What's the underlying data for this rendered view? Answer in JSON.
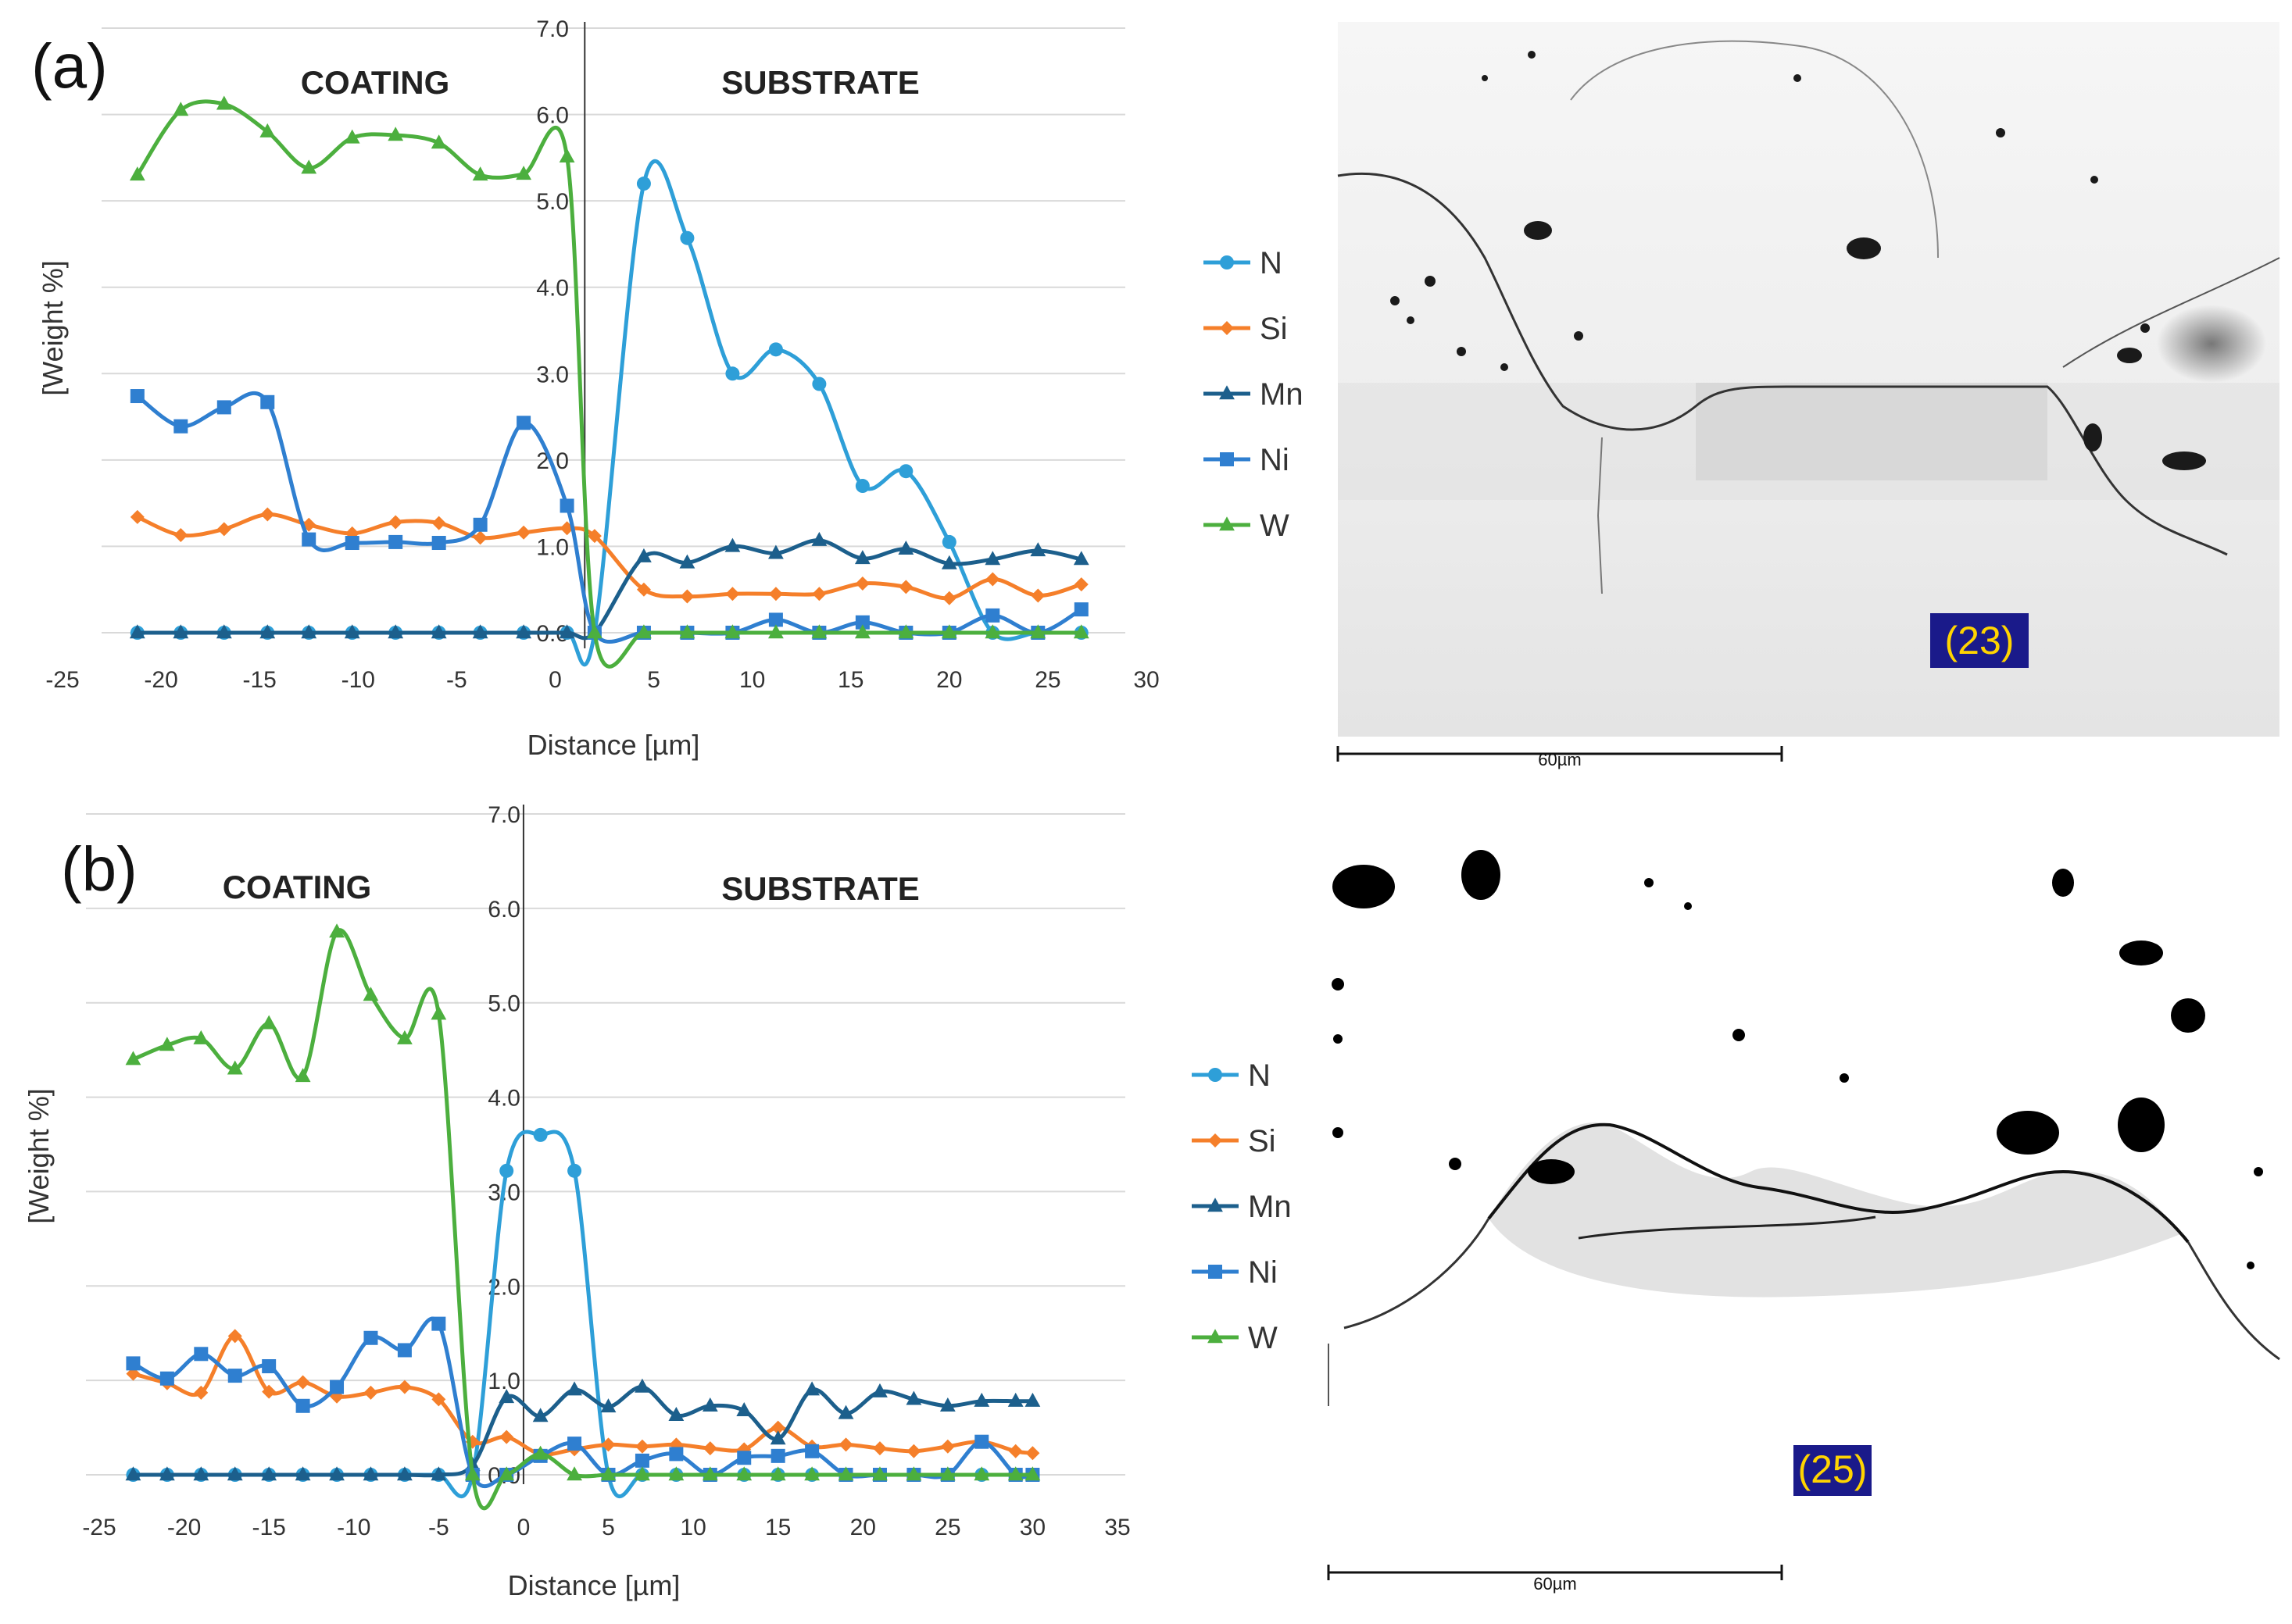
{
  "chart_data": [
    {
      "type": "line",
      "panel_label": "(a)",
      "region_left": "COATING",
      "region_right": "SUBSTRATE",
      "xlabel": "Distance [µm]",
      "ylabel": "[Weight %]",
      "xlim": [
        -25,
        30
      ],
      "ylim": [
        0,
        7
      ],
      "xticks": [
        "-25",
        "-20",
        "-15",
        "-10",
        "-5",
        "0",
        "5",
        "10",
        "15",
        "20",
        "25",
        "30"
      ],
      "yticks": [
        "0.0",
        "1.0",
        "2.0",
        "3.0",
        "4.0",
        "5.0",
        "6.0",
        "7.0"
      ],
      "interface_x": 1.5,
      "series": [
        {
          "name": "N",
          "color": "#2e9fd8",
          "marker": "circle",
          "x": [
            -21.2,
            -19.0,
            -16.8,
            -14.6,
            -12.5,
            -10.3,
            -8.1,
            -5.9,
            -3.8,
            -1.6,
            0.6,
            2.0,
            4.5,
            6.7,
            9.0,
            11.2,
            13.4,
            15.6,
            17.8,
            20.0,
            22.2,
            24.5,
            26.7
          ],
          "y": [
            0,
            0,
            0,
            0,
            0,
            0,
            0,
            0,
            0,
            0,
            0,
            0,
            5.2,
            4.57,
            3.0,
            3.28,
            2.88,
            1.7,
            1.87,
            1.05,
            0,
            0,
            0
          ]
        },
        {
          "name": "Si",
          "color": "#f57f2a",
          "marker": "diamond",
          "x": [
            -21.2,
            -19.0,
            -16.8,
            -14.6,
            -12.5,
            -10.3,
            -8.1,
            -5.9,
            -3.8,
            -1.6,
            0.6,
            2.0,
            4.5,
            6.7,
            9.0,
            11.2,
            13.4,
            15.6,
            17.8,
            20.0,
            22.2,
            24.5,
            26.7
          ],
          "y": [
            1.34,
            1.13,
            1.2,
            1.37,
            1.25,
            1.15,
            1.28,
            1.27,
            1.1,
            1.16,
            1.21,
            1.12,
            0.5,
            0.42,
            0.45,
            0.45,
            0.45,
            0.57,
            0.53,
            0.4,
            0.62,
            0.43,
            0.56
          ]
        },
        {
          "name": "Mn",
          "color": "#1c5f8c",
          "marker": "triangle",
          "x": [
            -21.2,
            -19.0,
            -16.8,
            -14.6,
            -12.5,
            -10.3,
            -8.1,
            -5.9,
            -3.8,
            -1.6,
            0.6,
            2.0,
            4.5,
            6.7,
            9.0,
            11.2,
            13.4,
            15.6,
            17.8,
            20.0,
            22.2,
            24.5,
            26.7
          ],
          "y": [
            0,
            0,
            0,
            0,
            0,
            0,
            0,
            0,
            0,
            0,
            0,
            0,
            0.88,
            0.81,
            1.0,
            0.92,
            1.07,
            0.86,
            0.97,
            0.8,
            0.85,
            0.95,
            0.85
          ]
        },
        {
          "name": "Ni",
          "color": "#2f7fd0",
          "marker": "square",
          "x": [
            -21.2,
            -19.0,
            -16.8,
            -14.6,
            -12.5,
            -10.3,
            -8.1,
            -5.9,
            -3.8,
            -1.6,
            0.6,
            2.0,
            4.5,
            6.7,
            9.0,
            11.2,
            13.4,
            15.6,
            17.8,
            20.0,
            22.2,
            24.5,
            26.7
          ],
          "y": [
            2.74,
            2.39,
            2.61,
            2.67,
            1.08,
            1.04,
            1.05,
            1.04,
            1.25,
            2.43,
            1.47,
            0,
            0,
            0,
            0,
            0.15,
            0,
            0.12,
            0,
            0,
            0.2,
            0,
            0.27
          ]
        },
        {
          "name": "W",
          "color": "#4caf3e",
          "marker": "triangle",
          "x": [
            -21.2,
            -19.0,
            -16.8,
            -14.6,
            -12.5,
            -10.3,
            -8.1,
            -5.9,
            -3.8,
            -1.6,
            0.6,
            2.0,
            4.5,
            6.7,
            9.0,
            11.2,
            13.4,
            15.6,
            17.8,
            20.0,
            22.2,
            24.5,
            26.7
          ],
          "y": [
            5.3,
            6.05,
            6.12,
            5.8,
            5.38,
            5.73,
            5.76,
            5.67,
            5.3,
            5.31,
            5.51,
            0,
            0,
            0,
            0,
            0,
            0,
            0,
            0,
            0,
            0,
            0,
            0
          ]
        }
      ]
    },
    {
      "type": "line",
      "panel_label": "(b)",
      "region_left": "COATING",
      "region_right": "SUBSTRATE",
      "xlabel": "Distance [µm]",
      "ylabel": "[Weight  %]",
      "xlim": [
        -25,
        35
      ],
      "ylim": [
        0,
        7
      ],
      "xticks": [
        "-25",
        "-20",
        "-15",
        "-10",
        "-5",
        "0",
        "5",
        "10",
        "15",
        "20",
        "25",
        "30",
        "35"
      ],
      "yticks": [
        "0.0",
        "1.0",
        "2.0",
        "3.0",
        "4.0",
        "5.0",
        "6.0",
        "7.0"
      ],
      "interface_x": 0,
      "series": [
        {
          "name": "N",
          "color": "#2e9fd8",
          "marker": "circle",
          "x": [
            -23,
            -21,
            -19,
            -17,
            -15,
            -13,
            -11,
            -9,
            -7,
            -5,
            -3,
            -1,
            1,
            3,
            5,
            7,
            9,
            11,
            13,
            15,
            17,
            19,
            21,
            23,
            25,
            27,
            29,
            30
          ],
          "y": [
            0,
            0,
            0,
            0,
            0,
            0,
            0,
            0,
            0,
            0,
            0,
            3.22,
            3.6,
            3.22,
            0,
            0,
            0,
            0,
            0,
            0,
            0,
            0,
            0,
            0,
            0,
            0,
            0,
            0
          ]
        },
        {
          "name": "Si",
          "color": "#f57f2a",
          "marker": "diamond",
          "x": [
            -23,
            -21,
            -19,
            -17,
            -15,
            -13,
            -11,
            -9,
            -7,
            -5,
            -3,
            -1,
            1,
            3,
            5,
            7,
            9,
            11,
            13,
            15,
            17,
            19,
            21,
            23,
            25,
            27,
            29,
            30
          ],
          "y": [
            1.07,
            0.97,
            0.87,
            1.47,
            0.88,
            0.98,
            0.83,
            0.87,
            0.93,
            0.8,
            0.35,
            0.4,
            0.22,
            0.27,
            0.32,
            0.3,
            0.32,
            0.28,
            0.27,
            0.5,
            0.3,
            0.32,
            0.28,
            0.25,
            0.3,
            0.35,
            0.25,
            0.23
          ]
        },
        {
          "name": "Mn",
          "color": "#1c5f8c",
          "marker": "triangle",
          "x": [
            -23,
            -21,
            -19,
            -17,
            -15,
            -13,
            -11,
            -9,
            -7,
            -5,
            -3,
            -1,
            1,
            3,
            5,
            7,
            9,
            11,
            13,
            15,
            17,
            19,
            21,
            23,
            25,
            27,
            29,
            30
          ],
          "y": [
            0,
            0,
            0,
            0,
            0,
            0,
            0,
            0,
            0,
            0,
            0.1,
            0.82,
            0.62,
            0.9,
            0.72,
            0.93,
            0.63,
            0.73,
            0.68,
            0.38,
            0.9,
            0.65,
            0.88,
            0.8,
            0.73,
            0.78,
            0.78,
            0.78
          ]
        },
        {
          "name": "Ni",
          "color": "#2f7fd0",
          "marker": "square",
          "x": [
            -23,
            -21,
            -19,
            -17,
            -15,
            -13,
            -11,
            -9,
            -7,
            -5,
            -3,
            -1,
            1,
            3,
            5,
            7,
            9,
            11,
            13,
            15,
            17,
            19,
            21,
            23,
            25,
            27,
            29,
            30
          ],
          "y": [
            1.18,
            1.02,
            1.28,
            1.05,
            1.15,
            0.73,
            0.93,
            1.45,
            1.32,
            1.6,
            0,
            0,
            0.2,
            0.33,
            0,
            0.15,
            0.22,
            0,
            0.18,
            0.2,
            0.25,
            0,
            0,
            0,
            0,
            0.35,
            0,
            0
          ]
        },
        {
          "name": "W",
          "color": "#4caf3e",
          "marker": "triangle",
          "x": [
            -23,
            -21,
            -19,
            -17,
            -15,
            -13,
            -11,
            -9,
            -7,
            -5,
            -3,
            -1,
            1,
            3,
            5,
            7,
            9,
            11,
            13,
            15,
            17,
            19,
            21,
            23,
            25,
            27,
            29,
            30
          ],
          "y": [
            4.4,
            4.55,
            4.62,
            4.3,
            4.78,
            4.22,
            5.75,
            5.08,
            4.62,
            4.88,
            0,
            0,
            0.22,
            0,
            0,
            0,
            0,
            0,
            0,
            0,
            0,
            0,
            0,
            0,
            0,
            0,
            0,
            0
          ]
        }
      ]
    }
  ],
  "micrographs": [
    {
      "scale_bar_label": "60µm",
      "sample_tag": "(23)"
    },
    {
      "scale_bar_label": "60µm",
      "sample_tag": "(25)"
    }
  ]
}
